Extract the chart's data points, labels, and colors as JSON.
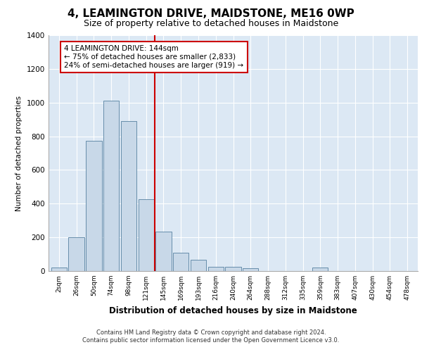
{
  "title": "4, LEAMINGTON DRIVE, MAIDSTONE, ME16 0WP",
  "subtitle": "Size of property relative to detached houses in Maidstone",
  "xlabel": "Distribution of detached houses by size in Maidstone",
  "ylabel": "Number of detached properties",
  "bar_labels": [
    "2sqm",
    "26sqm",
    "50sqm",
    "74sqm",
    "98sqm",
    "121sqm",
    "145sqm",
    "169sqm",
    "193sqm",
    "216sqm",
    "240sqm",
    "264sqm",
    "288sqm",
    "312sqm",
    "335sqm",
    "359sqm",
    "383sqm",
    "407sqm",
    "430sqm",
    "454sqm",
    "478sqm"
  ],
  "bar_values": [
    20,
    200,
    775,
    1010,
    890,
    425,
    235,
    110,
    65,
    25,
    25,
    15,
    0,
    0,
    0,
    20,
    0,
    0,
    0,
    0,
    0
  ],
  "bar_color": "#c8d8e8",
  "bar_edge_color": "#5580a0",
  "vline_x_index": 6,
  "vline_color": "#cc0000",
  "annotation_text": "4 LEAMINGTON DRIVE: 144sqm\n← 75% of detached houses are smaller (2,833)\n24% of semi-detached houses are larger (919) →",
  "annotation_box_color": "#ffffff",
  "annotation_box_edge_color": "#cc0000",
  "ylim": [
    0,
    1400
  ],
  "yticks": [
    0,
    200,
    400,
    600,
    800,
    1000,
    1200,
    1400
  ],
  "background_color": "#dce8f4",
  "footer_line1": "Contains HM Land Registry data © Crown copyright and database right 2024.",
  "footer_line2": "Contains public sector information licensed under the Open Government Licence v3.0.",
  "title_fontsize": 11,
  "subtitle_fontsize": 9,
  "fig_width": 6.0,
  "fig_height": 5.0,
  "fig_dpi": 100
}
